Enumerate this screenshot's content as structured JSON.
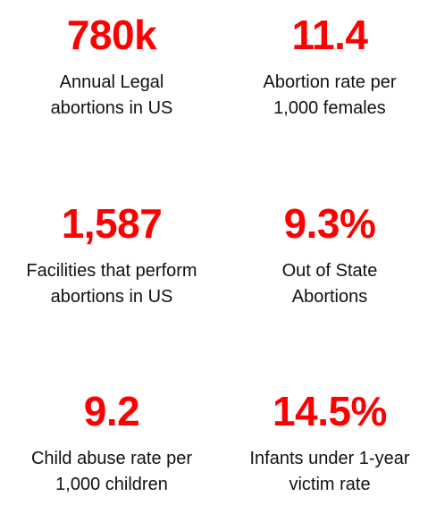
{
  "accent_color": "#ff0000",
  "stats": [
    {
      "value": "780k",
      "label_line1": "Annual Legal",
      "label_line2": "abortions in US"
    },
    {
      "value": "11.4",
      "label_line1": "Abortion rate per",
      "label_line2": "1,000 females"
    },
    {
      "value": "1,587",
      "label_line1": "Facilities that perform",
      "label_line2": "abortions in US"
    },
    {
      "value": "9.3%",
      "label_line1": "Out of State",
      "label_line2": "Abortions"
    },
    {
      "value": "9.2",
      "label_line1": "Child abuse rate per",
      "label_line2": "1,000 children"
    },
    {
      "value": "14.5%",
      "label_line1": "Infants under 1-year",
      "label_line2": "victim rate"
    }
  ]
}
